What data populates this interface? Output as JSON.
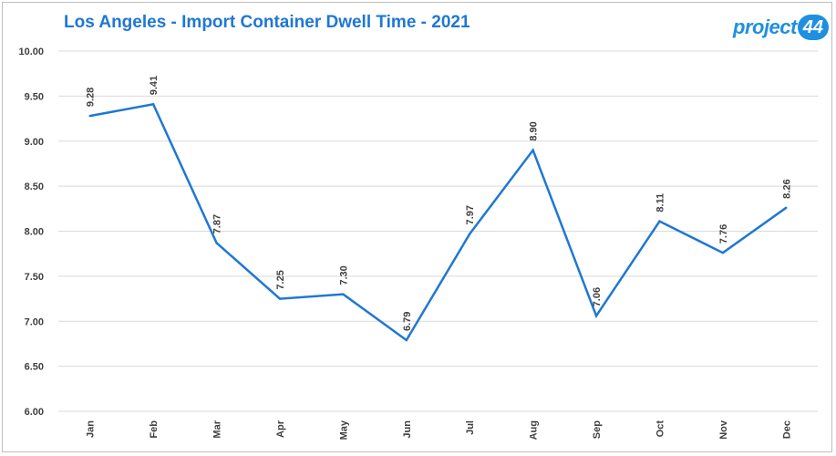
{
  "title": "Los Angeles - Import Container Dwell Time - 2021",
  "logo": {
    "text": "project",
    "number": "44",
    "icon": "project44-logo"
  },
  "colors": {
    "accent": "#1f77d4",
    "line": "#1f77d4",
    "grid": "#d9d9d9",
    "text": "#404040"
  },
  "chart_data": {
    "type": "line",
    "categories": [
      "Jan",
      "Feb",
      "Mar",
      "Apr",
      "May",
      "Jun",
      "Jul",
      "Aug",
      "Sep",
      "Oct",
      "Nov",
      "Dec"
    ],
    "series": [
      {
        "values": [
          9.28,
          9.41,
          7.87,
          7.25,
          7.3,
          6.79,
          7.97,
          8.9,
          7.06,
          8.11,
          7.76,
          8.26
        ]
      }
    ],
    "data_labels": [
      "9.28",
      "9.41",
      "7.87",
      "7.25",
      "7.30",
      "6.79",
      "7.97",
      "8.90",
      "7.06",
      "8.11",
      "7.76",
      "8.26"
    ],
    "yticks": [
      "10.00",
      "9.50",
      "9.00",
      "8.50",
      "8.00",
      "7.50",
      "7.00",
      "6.50",
      "6.00"
    ],
    "ylim": [
      6.0,
      10.0
    ],
    "grid": true,
    "legend": "none"
  }
}
